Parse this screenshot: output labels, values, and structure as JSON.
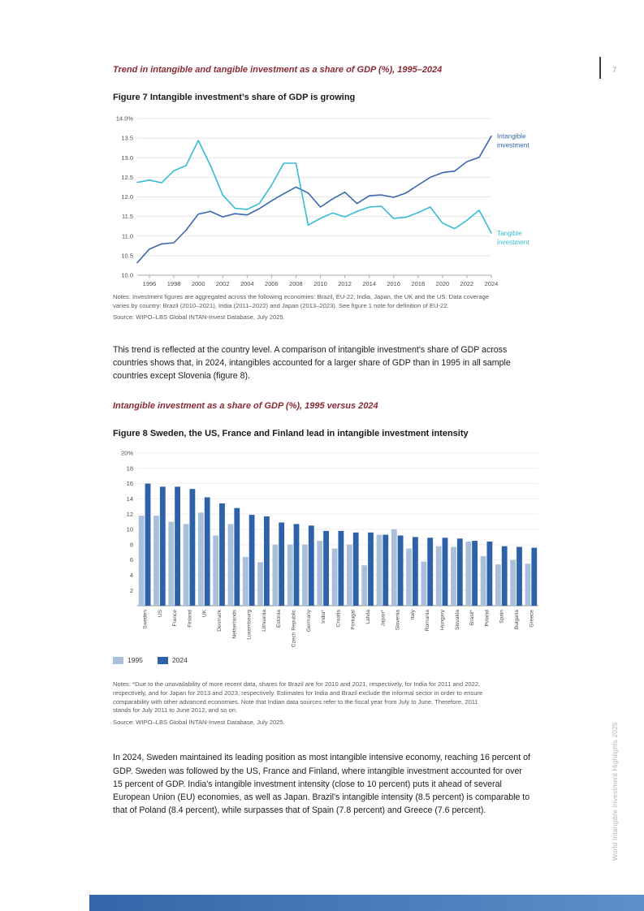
{
  "page": {
    "number": "7",
    "side_text": "World Intangible Investment Highlights 2025"
  },
  "colors": {
    "accent_heading": "#8a2a33",
    "footer_bar_left": "#3565a8",
    "footer_bar_right": "#5d8fc9",
    "line_intangible": "#3a67ae",
    "line_tangible": "#35bcd4",
    "bar_1995": "#a9c0dd",
    "bar_2024": "#2d61a8"
  },
  "section1": {
    "kicker": "Trend in intangible and tangible investment as a share of GDP (%), 1995–2024",
    "figure_title": "Figure 7 Intangible investment’s share of GDP is growing",
    "notes": "Notes: Investment figures are aggregated across the following economies: Brazil, EU-22, India, Japan, the UK and the US. Data coverage varies by country: Brazil (2010–2021), India (2011–2022) and Japan (2013–2023). See figure 1 note for definition of EU-22.",
    "source": "Source: WIPO–LBS Global INTAN-Invest Database, July 2025."
  },
  "paragraph1": "This trend is reflected at the country level. A comparison of intangible investment's share of GDP across countries shows that, in 2024, intangibles accounted for a larger share of GDP than in 1995 in all sample countries except Slovenia (figure 8).",
  "section2": {
    "kicker": "Intangible investment as a share of GDP (%), 1995 versus 2024",
    "figure_title": "Figure 8 Sweden, the US, France and Finland lead in intangible investment intensity",
    "notes": "Notes: *Due to the unavailability of more recent data, shares for Brazil are for 2010 and 2021, respectively, for India for 2011 and 2022, respectively, and for Japan for 2013 and 2023, respectively. Estimates for India and Brazil exclude the informal sector in order to ensure comparability with other advanced economies. Note that Indian data sources refer to the fiscal year from July to June. Therefore, 2011 stands for July 2011 to June 2012, and so on.",
    "source": "Source: WIPO–LBS Global INTAN-Invest Database, July 2025."
  },
  "paragraph2": "In 2024, Sweden maintained its leading position as most intangible intensive economy, reaching 16 percent of GDP. Sweden was followed by the US, France and Finland, where intangible investment accounted for over 15 percent of GDP. India's intangible investment intensity (close to 10 percent) puts it ahead of several European Union (EU) economies, as well as Japan. Brazil's intangible intensity (8.5 percent) is comparable to that of Poland (8.4 percent), while surpasses that of Spain (7.8 percent) and Greece (7.6 percent).",
  "chart_data": [
    {
      "type": "line",
      "title": "Figure 7 Intangible investment’s share of GDP is growing",
      "xlabel": "",
      "ylabel": "",
      "ylim": [
        10.0,
        14.0
      ],
      "ytick_step": 0.5,
      "ytop_label": "14.0%",
      "xlim": [
        1995,
        2024
      ],
      "xticks": [
        1996,
        1998,
        2000,
        2002,
        2004,
        2006,
        2008,
        2010,
        2012,
        2014,
        2016,
        2018,
        2020,
        2022,
        2024
      ],
      "grid": true,
      "legend_position": "right-of-line-ends",
      "x": [
        1995,
        1996,
        1997,
        1998,
        1999,
        2000,
        2001,
        2002,
        2003,
        2004,
        2005,
        2006,
        2007,
        2008,
        2009,
        2010,
        2011,
        2012,
        2013,
        2014,
        2015,
        2016,
        2017,
        2018,
        2019,
        2020,
        2021,
        2022,
        2023,
        2024
      ],
      "series": [
        {
          "name": "Intangible investment",
          "color": "#3a67ae",
          "values": [
            10.32,
            10.67,
            10.8,
            10.83,
            11.15,
            11.56,
            11.63,
            11.49,
            11.57,
            11.54,
            11.7,
            11.9,
            12.08,
            12.25,
            12.1,
            11.74,
            11.95,
            12.12,
            11.83,
            12.03,
            12.05,
            11.99,
            12.1,
            12.3,
            12.5,
            12.62,
            12.66,
            12.9,
            13.01,
            13.55
          ]
        },
        {
          "name": "Tangible investment",
          "color": "#35bcd4",
          "values": [
            12.37,
            12.43,
            12.36,
            12.67,
            12.8,
            13.44,
            12.8,
            12.05,
            11.71,
            11.68,
            11.83,
            12.3,
            12.86,
            12.86,
            11.28,
            11.45,
            11.59,
            11.49,
            11.63,
            11.74,
            11.76,
            11.45,
            11.48,
            11.6,
            11.74,
            11.33,
            11.19,
            11.4,
            11.66,
            11.08
          ]
        }
      ]
    },
    {
      "type": "bar",
      "title": "Figure 8 Sweden, the US, France and Finland lead in intangible investment intensity",
      "xlabel": "",
      "ylabel": "",
      "ylim": [
        0,
        20
      ],
      "yticks": [
        2,
        4,
        6,
        8,
        10,
        12,
        14,
        16,
        18,
        20
      ],
      "ytop_label": "20%",
      "grid": true,
      "legend_position": "below-left",
      "categories": [
        "Sweden",
        "US",
        "France",
        "Finland",
        "UK",
        "Denmark",
        "Netherlands",
        "Luxembourg",
        "Lithuania",
        "Estonia",
        "Czech Republic",
        "Germany",
        "India*",
        "Croatia",
        "Portugal",
        "Latvia",
        "Japan*",
        "Slovenia",
        "Italy",
        "Romania",
        "Hungary",
        "Slovakia",
        "Brasil*",
        "Poland",
        "Spain",
        "Bulgaria",
        "Greece"
      ],
      "series": [
        {
          "name": "1995",
          "color": "#a9c0dd",
          "values": [
            11.8,
            11.8,
            11.0,
            10.7,
            12.2,
            9.2,
            10.7,
            6.4,
            5.7,
            8.0,
            8.0,
            8.0,
            8.5,
            7.5,
            8.0,
            5.3,
            9.3,
            10.0,
            7.5,
            5.8,
            7.8,
            7.7,
            8.4,
            6.5,
            5.4,
            6.0,
            5.5
          ]
        },
        {
          "name": "2024",
          "color": "#2d61a8",
          "values": [
            16.0,
            15.6,
            15.6,
            15.3,
            14.2,
            13.4,
            12.8,
            11.9,
            11.7,
            10.9,
            10.7,
            10.5,
            9.8,
            9.8,
            9.6,
            9.6,
            9.3,
            9.2,
            9.0,
            8.9,
            8.9,
            8.8,
            8.5,
            8.4,
            7.8,
            7.7,
            7.6
          ]
        }
      ]
    }
  ]
}
